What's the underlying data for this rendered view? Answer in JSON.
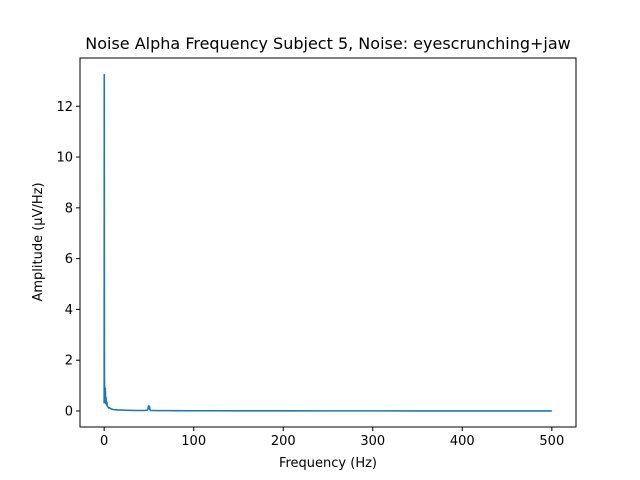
{
  "chart_data": {
    "type": "line",
    "title": "Noise Alpha Frequency Subject 5, Noise: eyescrunching+jaw",
    "xlabel": "Frequency (Hz)",
    "ylabel": "Amplitude (µV/Hz)",
    "xlim": [
      -27,
      527
    ],
    "ylim": [
      -0.63,
      13.9
    ],
    "xticks": [
      0,
      100,
      200,
      300,
      400,
      500
    ],
    "yticks": [
      0,
      2,
      4,
      6,
      8,
      10,
      12
    ],
    "grid": false,
    "legend": "none",
    "series": [
      {
        "color": "#1f77b4",
        "x": [
          0,
          0.1,
          0.2,
          0.3,
          0.5,
          0.8,
          1,
          1.3,
          1.6,
          2,
          2.5,
          3,
          3.5,
          4,
          4.5,
          5,
          6,
          7,
          8,
          9,
          10,
          12,
          15,
          20,
          25,
          30,
          35,
          40,
          45,
          48,
          49,
          49.5,
          50,
          50.5,
          51,
          52,
          55,
          60,
          70,
          80,
          100,
          120,
          150,
          175,
          200,
          250,
          300,
          350,
          400,
          450,
          500
        ],
        "y": [
          0.3,
          13.25,
          5.5,
          1.3,
          0.9,
          0.6,
          0.45,
          0.9,
          0.3,
          0.55,
          0.25,
          0.35,
          0.2,
          0.18,
          0.15,
          0.12,
          0.13,
          0.1,
          0.08,
          0.07,
          0.06,
          0.05,
          0.04,
          0.035,
          0.03,
          0.025,
          0.02,
          0.02,
          0.02,
          0.03,
          0.08,
          0.2,
          0.12,
          0.19,
          0.05,
          0.02,
          0.02,
          0.015,
          0.015,
          0.012,
          0.01,
          0.01,
          0.008,
          0.008,
          0.006,
          0.005,
          0.005,
          0.004,
          0.004,
          0.003,
          0.003
        ]
      }
    ]
  }
}
